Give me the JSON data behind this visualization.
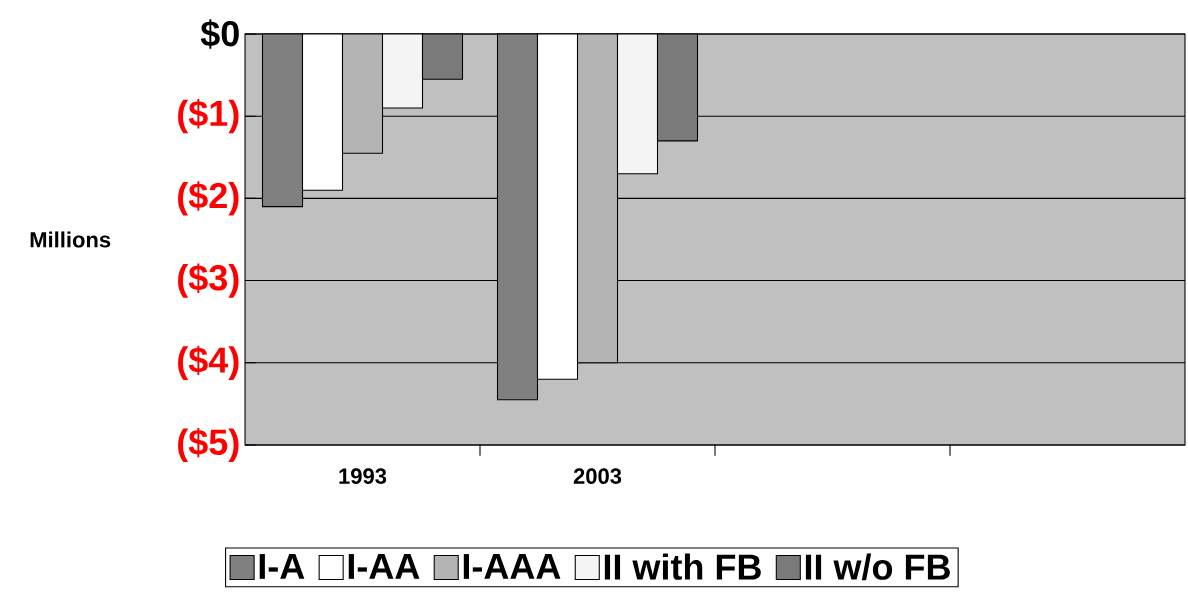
{
  "chart_data": {
    "type": "bar",
    "ylabel": "Millions",
    "categories": [
      "1993",
      "2003",
      null,
      null
    ],
    "series": [
      {
        "name": "I-A",
        "color": "#808080",
        "values": [
          -2.1,
          -4.45,
          null,
          null
        ]
      },
      {
        "name": "I-AA",
        "color": "#ffffff",
        "values": [
          -1.9,
          -4.2,
          null,
          null
        ]
      },
      {
        "name": "I-AAA",
        "color": "#b4b4b4",
        "values": [
          -1.45,
          -4.0,
          null,
          null
        ]
      },
      {
        "name": "II with FB",
        "color": "#f4f4f4",
        "values": [
          -0.9,
          -1.7,
          null,
          null
        ]
      },
      {
        "name": "II w/o FB",
        "color": "#7a7a7a",
        "values": [
          -0.55,
          -1.3,
          null,
          null
        ]
      }
    ],
    "ylim": [
      -5,
      0
    ],
    "yticks": [
      {
        "value": 0,
        "label": "$0"
      },
      {
        "value": -1,
        "label": "($1)"
      },
      {
        "value": -2,
        "label": "($2)"
      },
      {
        "value": -3,
        "label": "($3)"
      },
      {
        "value": -4,
        "label": "($4)"
      },
      {
        "value": -5,
        "label": "($5)"
      }
    ],
    "grid": "y",
    "legend": "bottom"
  }
}
